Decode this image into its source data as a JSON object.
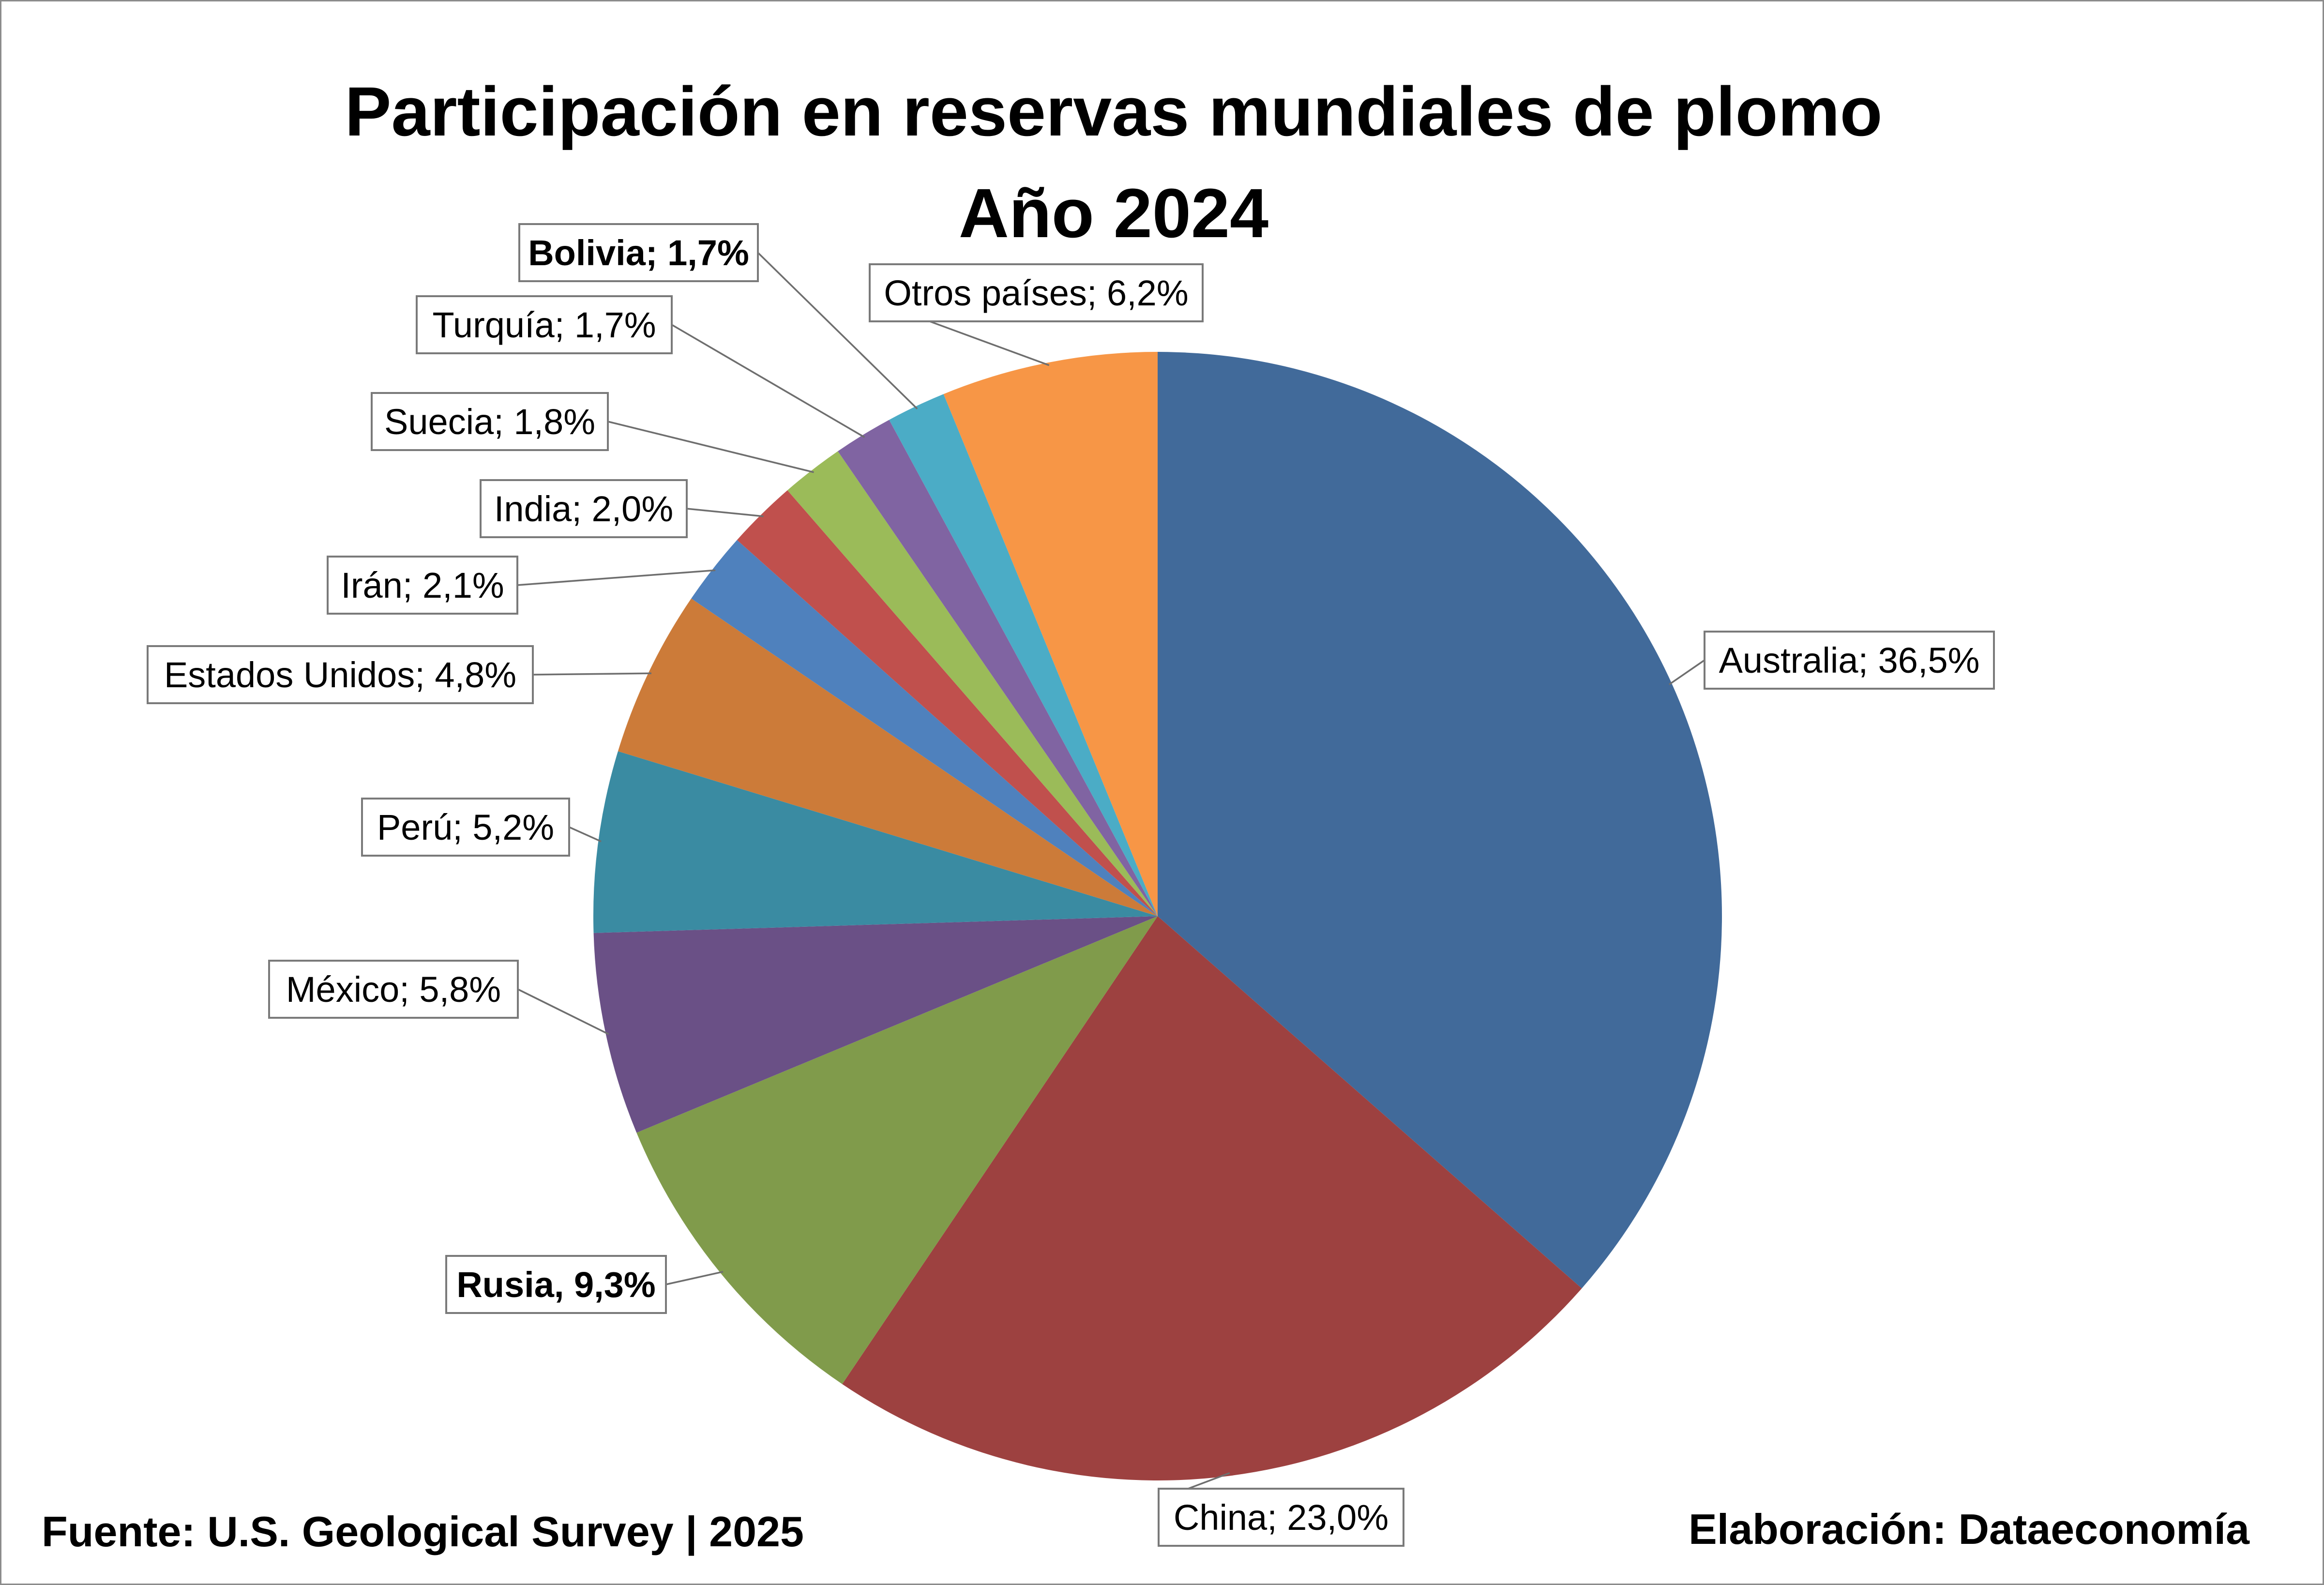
{
  "title_line1": "Participación en reservas mundiales de plomo",
  "title_line2": "Año 2024",
  "source": "Fuente: U.S. Geological Survey | 2025",
  "credit": "Elaboración: Dataeconomía",
  "chart_data": {
    "type": "pie",
    "title": "Participación en reservas mundiales de plomo Año 2024",
    "start_angle_deg": 0,
    "direction": "clockwise",
    "slices": [
      {
        "label": "Australia; 36,5%",
        "category": "Australia",
        "value": 36.5,
        "color": "#416a9a",
        "bold": false
      },
      {
        "label": "China; 23,0%",
        "category": "China",
        "value": 23.0,
        "color": "#9d4140",
        "bold": false
      },
      {
        "label": "Rusia, 9,3%",
        "category": "Rusia",
        "value": 9.3,
        "color": "#809b4b",
        "bold": true
      },
      {
        "label": "México; 5,8%",
        "category": "México",
        "value": 5.8,
        "color": "#6a5086",
        "bold": false
      },
      {
        "label": "Perú; 5,2%",
        "category": "Perú",
        "value": 5.2,
        "color": "#3a8ba2",
        "bold": false
      },
      {
        "label": "Estados Unidos; 4,8%",
        "category": "Estados Unidos",
        "value": 4.8,
        "color": "#cc7b39",
        "bold": false
      },
      {
        "label": "Irán; 2,1%",
        "category": "Irán",
        "value": 2.1,
        "color": "#4f81bd",
        "bold": false
      },
      {
        "label": "India; 2,0%",
        "category": "India",
        "value": 2.0,
        "color": "#c0504d",
        "bold": false
      },
      {
        "label": "Suecia; 1,8%",
        "category": "Suecia",
        "value": 1.8,
        "color": "#9bbb59",
        "bold": false
      },
      {
        "label": "Turquía; 1,7%",
        "category": "Turquía",
        "value": 1.7,
        "color": "#8064a2",
        "bold": false
      },
      {
        "label": "Bolivia; 1,7%",
        "category": "Bolivia",
        "value": 1.7,
        "color": "#4bacc6",
        "bold": true
      },
      {
        "label": "Otros países; 6,2%",
        "category": "Otros países",
        "value": 6.2,
        "color": "#f79646",
        "bold": false
      }
    ]
  }
}
